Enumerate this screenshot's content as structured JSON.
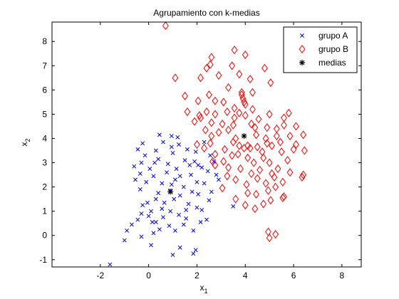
{
  "figure": {
    "background": "#ffffff",
    "axes_color": "#000000"
  },
  "chart_data": {
    "type": "scatter",
    "title": "Agrupamiento con k-medias",
    "xlabel": "x",
    "xlabel_sub": "1",
    "ylabel": "x",
    "ylabel_sub": "2",
    "xlim": [
      -4,
      8.8
    ],
    "ylim": [
      -1.3,
      8.8
    ],
    "xticks": [
      -2,
      0,
      2,
      4,
      6,
      8
    ],
    "yticks": [
      -1,
      0,
      1,
      2,
      3,
      4,
      5,
      6,
      7,
      8
    ],
    "grid": false,
    "legend_position": "top-right",
    "series": [
      {
        "name": "grupo A",
        "marker": "x",
        "color": "#0000ff",
        "points": [
          [
            -1.6,
            -1.2
          ],
          [
            -0.3,
            -0.05
          ],
          [
            -1.0,
            -0.2
          ],
          [
            -0.9,
            0.2
          ],
          [
            -0.7,
            0.45
          ],
          [
            -0.45,
            0.65
          ],
          [
            0.1,
            -0.4
          ],
          [
            0.2,
            0.1
          ],
          [
            0.45,
            0.25
          ],
          [
            0.85,
            0.4
          ],
          [
            1.1,
            0.2
          ],
          [
            1.3,
            -0.5
          ],
          [
            1.95,
            -0.6
          ],
          [
            1.0,
            -0.8
          ],
          [
            1.85,
            -0.75
          ],
          [
            -0.3,
            0.9
          ],
          [
            0.0,
            0.8
          ],
          [
            0.3,
            0.55
          ],
          [
            0.6,
            0.75
          ],
          [
            -0.25,
            1.25
          ],
          [
            -0.05,
            1.35
          ],
          [
            0.3,
            1.5
          ],
          [
            0.55,
            1.1
          ],
          [
            0.9,
            1.0
          ],
          [
            1.25,
            0.85
          ],
          [
            1.55,
            0.7
          ],
          [
            2.15,
            0.55
          ],
          [
            2.4,
            0.65
          ],
          [
            2.5,
            1.45
          ],
          [
            2.0,
            1.15
          ],
          [
            1.65,
            1.3
          ],
          [
            0.4,
            1.75
          ],
          [
            0.9,
            1.85
          ],
          [
            1.3,
            1.65
          ],
          [
            1.8,
            1.8
          ],
          [
            2.05,
            1.7
          ],
          [
            2.3,
            2.15
          ],
          [
            2.6,
            1.8
          ],
          [
            -0.55,
            2.3
          ],
          [
            -0.35,
            2.55
          ],
          [
            -0.1,
            2.2
          ],
          [
            0.2,
            2.45
          ],
          [
            0.55,
            2.15
          ],
          [
            0.95,
            2.1
          ],
          [
            1.3,
            2.45
          ],
          [
            1.75,
            2.5
          ],
          [
            2.0,
            2.2
          ],
          [
            2.45,
            2.65
          ],
          [
            2.8,
            2.5
          ],
          [
            2.9,
            2.3
          ],
          [
            -0.6,
            2.85
          ],
          [
            -0.3,
            3.0
          ],
          [
            0.05,
            2.75
          ],
          [
            0.4,
            3.15
          ],
          [
            0.8,
            2.95
          ],
          [
            1.15,
            2.75
          ],
          [
            1.5,
            3.1
          ],
          [
            1.9,
            3.05
          ],
          [
            2.2,
            2.8
          ],
          [
            2.55,
            3.3
          ],
          [
            2.7,
            3.05
          ],
          [
            -0.45,
            3.55
          ],
          [
            -0.25,
            3.8
          ],
          [
            0.3,
            3.5
          ],
          [
            0.6,
            3.85
          ],
          [
            0.95,
            3.65
          ],
          [
            1.25,
            3.75
          ],
          [
            1.6,
            3.55
          ],
          [
            1.95,
            3.45
          ],
          [
            2.3,
            3.85
          ],
          [
            0.45,
            4.15
          ],
          [
            0.95,
            4.1
          ],
          [
            1.2,
            4.05
          ],
          [
            0.1,
            1.0
          ],
          [
            -0.35,
            1.9
          ],
          [
            1.05,
            1.5
          ],
          [
            1.45,
            2.0
          ],
          [
            0.25,
            3.0
          ],
          [
            2.05,
            2.9
          ],
          [
            3.5,
            1.2
          ],
          [
            1.85,
            0.2
          ],
          [
            0.75,
            2.6
          ],
          [
            1.7,
            2.9
          ],
          [
            1.0,
            3.4
          ],
          [
            -0.15,
            3.3
          ],
          [
            0.15,
            0.55
          ],
          [
            1.45,
            0.45
          ],
          [
            2.2,
            1.05
          ],
          [
            0.65,
            1.35
          ],
          [
            1.1,
            2.3
          ],
          [
            1.55,
            1.05
          ]
        ]
      },
      {
        "name": "grupo B",
        "marker": "diamond",
        "color": "#ff0000",
        "points": [
          [
            0.7,
            8.65
          ],
          [
            2.6,
            7.35
          ],
          [
            3.55,
            7.65
          ],
          [
            4.0,
            7.45
          ],
          [
            2.55,
            7.05
          ],
          [
            2.4,
            6.9
          ],
          [
            3.45,
            7.0
          ],
          [
            3.75,
            6.65
          ],
          [
            4.8,
            6.9
          ],
          [
            1.1,
            6.5
          ],
          [
            2.15,
            6.5
          ],
          [
            2.9,
            6.6
          ],
          [
            4.2,
            6.45
          ],
          [
            3.3,
            6.1
          ],
          [
            3.85,
            5.8
          ],
          [
            4.3,
            5.9
          ],
          [
            5.05,
            6.3
          ],
          [
            1.5,
            5.75
          ],
          [
            2.5,
            5.8
          ],
          [
            2.05,
            5.55
          ],
          [
            2.75,
            5.55
          ],
          [
            3.1,
            5.5
          ],
          [
            3.95,
            5.5
          ],
          [
            3.9,
            5.65
          ],
          [
            4.0,
            5.4
          ],
          [
            4.3,
            5.2
          ],
          [
            1.6,
            5.1
          ],
          [
            2.1,
            4.95
          ],
          [
            2.4,
            5.1
          ],
          [
            2.75,
            5.0
          ],
          [
            3.25,
            5.1
          ],
          [
            3.55,
            5.25
          ],
          [
            3.75,
            5.05
          ],
          [
            4.0,
            4.95
          ],
          [
            4.55,
            4.8
          ],
          [
            5.0,
            5.0
          ],
          [
            5.6,
            4.85
          ],
          [
            5.8,
            5.05
          ],
          [
            1.9,
            4.7
          ],
          [
            2.6,
            4.65
          ],
          [
            3.05,
            4.6
          ],
          [
            3.5,
            4.55
          ],
          [
            4.25,
            4.6
          ],
          [
            4.9,
            4.45
          ],
          [
            5.3,
            4.4
          ],
          [
            5.6,
            4.55
          ],
          [
            6.1,
            4.5
          ],
          [
            6.4,
            4.15
          ],
          [
            2.6,
            4.1
          ],
          [
            2.9,
            4.25
          ],
          [
            3.3,
            4.35
          ],
          [
            3.6,
            4.0
          ],
          [
            4.45,
            4.15
          ],
          [
            4.85,
            4.0
          ],
          [
            5.3,
            4.1
          ],
          [
            5.85,
            4.1
          ],
          [
            2.0,
            3.75
          ],
          [
            2.3,
            3.6
          ],
          [
            2.55,
            3.8
          ],
          [
            3.15,
            3.55
          ],
          [
            3.5,
            3.85
          ],
          [
            3.75,
            3.7
          ],
          [
            3.95,
            3.6
          ],
          [
            4.1,
            3.7
          ],
          [
            4.5,
            3.65
          ],
          [
            4.7,
            3.45
          ],
          [
            5.1,
            3.7
          ],
          [
            5.45,
            3.85
          ],
          [
            6.1,
            3.75
          ],
          [
            6.45,
            3.5
          ],
          [
            2.75,
            3.35
          ],
          [
            3.1,
            3.05
          ],
          [
            3.45,
            3.3
          ],
          [
            3.7,
            3.35
          ],
          [
            4.1,
            3.2
          ],
          [
            4.35,
            3.0
          ],
          [
            4.75,
            3.2
          ],
          [
            5.0,
            3.0
          ],
          [
            5.5,
            3.45
          ],
          [
            6.0,
            3.55
          ],
          [
            2.75,
            2.9
          ],
          [
            3.3,
            2.8
          ],
          [
            3.8,
            2.75
          ],
          [
            4.25,
            2.55
          ],
          [
            4.6,
            2.7
          ],
          [
            5.1,
            2.55
          ],
          [
            5.35,
            2.75
          ],
          [
            5.85,
            2.6
          ],
          [
            6.4,
            2.5
          ],
          [
            3.25,
            2.45
          ],
          [
            3.6,
            2.3
          ],
          [
            4.05,
            2.1
          ],
          [
            4.5,
            2.35
          ],
          [
            4.85,
            2.15
          ],
          [
            5.2,
            2.4
          ],
          [
            5.55,
            2.2
          ],
          [
            6.35,
            2.4
          ],
          [
            3.05,
            1.95
          ],
          [
            4.1,
            1.75
          ],
          [
            4.45,
            1.7
          ],
          [
            4.95,
            1.85
          ],
          [
            5.25,
            2.0
          ],
          [
            5.6,
            1.6
          ],
          [
            3.6,
            1.5
          ],
          [
            4.0,
            1.25
          ],
          [
            4.4,
            1.1
          ],
          [
            4.75,
            1.3
          ],
          [
            5.05,
            1.45
          ],
          [
            5.55,
            1.55
          ],
          [
            4.95,
            0.15
          ],
          [
            5.25,
            0.05
          ],
          [
            5.0,
            -0.1
          ],
          [
            2.65,
            3.05
          ],
          [
            3.85,
            5.9
          ],
          [
            2.35,
            4.35
          ],
          [
            4.4,
            4.45
          ],
          [
            3.55,
            4.85
          ],
          [
            2.15,
            4.85
          ],
          [
            5.75,
            3.1
          ],
          [
            4.2,
            3.6
          ],
          [
            4.9,
            3.8
          ]
        ]
      },
      {
        "name": "medias",
        "marker": "star",
        "color": "#000000",
        "points": [
          [
            0.9,
            1.8
          ],
          [
            3.95,
            4.1
          ]
        ]
      }
    ]
  }
}
